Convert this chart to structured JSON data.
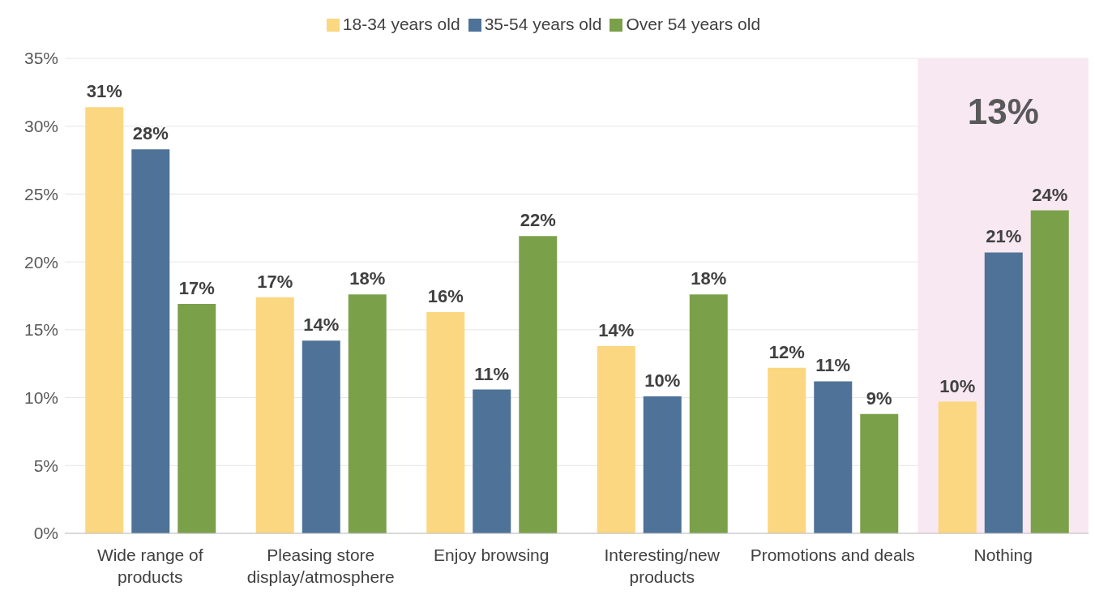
{
  "chart_data": {
    "type": "bar",
    "categories": [
      "Wide range of products",
      "Pleasing store display/atmosphere",
      "Enjoy browsing",
      "Interesting/new products",
      "Promotions and deals",
      "Nothing"
    ],
    "series": [
      {
        "name": "18-34 years old",
        "color": "#fad780",
        "values": [
          31.4,
          17.4,
          16.3,
          13.8,
          12.2,
          9.7
        ],
        "value_labels": [
          "31%",
          "17%",
          "16%",
          "14%",
          "12%",
          "10%"
        ]
      },
      {
        "name": "35-54 years old",
        "color": "#4e7298",
        "values": [
          28.3,
          14.2,
          10.6,
          10.1,
          11.2,
          20.7
        ],
        "value_labels": [
          "28%",
          "14%",
          "11%",
          "10%",
          "11%",
          "21%"
        ]
      },
      {
        "name": "Over 54 years old",
        "color": "#7ba04a",
        "values": [
          16.9,
          17.6,
          21.9,
          17.6,
          8.8,
          23.8
        ],
        "value_labels": [
          "17%",
          "18%",
          "22%",
          "18%",
          "9%",
          "24%"
        ]
      }
    ],
    "ylim": [
      0,
      35
    ],
    "yticks": [
      {
        "value": 0,
        "label": "0%"
      },
      {
        "value": 5,
        "label": "5%"
      },
      {
        "value": 10,
        "label": "10%"
      },
      {
        "value": 15,
        "label": "15%"
      },
      {
        "value": 20,
        "label": "20%"
      },
      {
        "value": 25,
        "label": "25%"
      },
      {
        "value": 30,
        "label": "30%"
      },
      {
        "value": 35,
        "label": "35%"
      }
    ],
    "bands": [
      {
        "axis": "x",
        "from": "Nothing",
        "to": "Nothing",
        "label": "13%",
        "color": "#f8e8f1"
      }
    ],
    "grid": "y",
    "legend": "top"
  }
}
